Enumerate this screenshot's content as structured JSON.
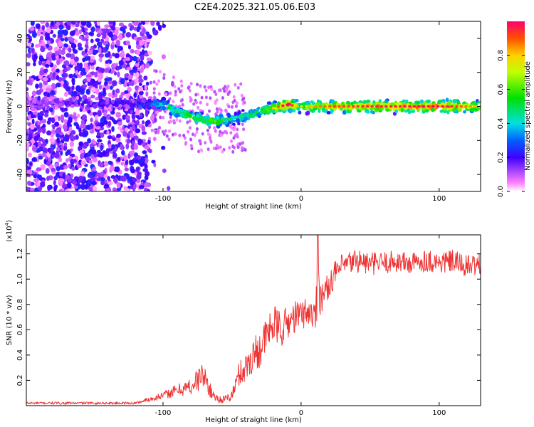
{
  "title": "C2E4.2025.321.05.06.E03",
  "chart_data": [
    {
      "type": "heatmap",
      "title": "C2E4.2025.321.05.06.E03",
      "xlabel": "Height of straight line (km)",
      "ylabel": "Frequency (Hz)",
      "xlim": [
        -199,
        130
      ],
      "ylim": [
        -50,
        50
      ],
      "xticks": [
        -100,
        0,
        100
      ],
      "yticks": [
        -40,
        -20,
        0,
        20,
        40
      ],
      "colorbar": {
        "label": "Normalized spectral amplitude",
        "range": [
          0,
          1
        ],
        "ticks": [
          0.0,
          0.2,
          0.4,
          0.6,
          0.8
        ]
      },
      "ridge_frequency_profile": {
        "x": [
          -199,
          -150,
          -110,
          -100,
          -90,
          -80,
          -70,
          -60,
          -50,
          -40,
          -30,
          -20,
          -10,
          0,
          10,
          20,
          50,
          100,
          130
        ],
        "frequency": [
          2,
          2,
          1,
          1,
          -3,
          -6,
          -8,
          -9,
          -7,
          -6,
          -3,
          -1,
          1,
          0,
          0,
          0,
          0,
          0,
          0
        ],
        "peak_amplitude": [
          0.15,
          0.18,
          0.25,
          0.45,
          0.5,
          0.6,
          0.55,
          0.6,
          0.45,
          0.5,
          0.55,
          0.7,
          0.95,
          0.6,
          0.75,
          0.8,
          0.85,
          0.9,
          0.7
        ]
      }
    },
    {
      "type": "line",
      "xlabel": "Height of straight line (km)",
      "ylabel": "SNR (10 * v/v)",
      "y_scale_label": "(x10",
      "y_scale_exponent": "4",
      "y_scale_suffix": ")",
      "xlim": [
        -199,
        130
      ],
      "ylim": [
        0,
        1.35
      ],
      "xticks": [
        -100,
        0,
        100
      ],
      "yticks": [
        0.2,
        0.4,
        0.6,
        0.8,
        1.0,
        1.2
      ],
      "color": "#ee3333",
      "series": [
        {
          "name": "SNR",
          "x": [
            -199,
            -160,
            -120,
            -110,
            -100,
            -90,
            -80,
            -75,
            -72,
            -68,
            -65,
            -60,
            -55,
            -50,
            -45,
            -40,
            -35,
            -30,
            -25,
            -20,
            -15,
            -10,
            -5,
            0,
            5,
            10,
            12,
            15,
            20,
            25,
            30,
            40,
            50,
            60,
            70,
            80,
            90,
            100,
            110,
            120,
            130
          ],
          "y": [
            0.02,
            0.02,
            0.02,
            0.05,
            0.08,
            0.12,
            0.15,
            0.2,
            0.25,
            0.18,
            0.1,
            0.05,
            0.05,
            0.08,
            0.25,
            0.3,
            0.4,
            0.45,
            0.55,
            0.65,
            0.6,
            0.65,
            0.7,
            0.72,
            0.75,
            0.7,
            1.0,
            0.85,
            0.95,
            1.05,
            1.1,
            1.15,
            1.12,
            1.13,
            1.14,
            1.12,
            1.15,
            1.13,
            1.14,
            1.1,
            1.12
          ],
          "noise_amplitude": [
            0.01,
            0.01,
            0.01,
            0.02,
            0.03,
            0.05,
            0.07,
            0.1,
            0.1,
            0.08,
            0.05,
            0.03,
            0.03,
            0.05,
            0.1,
            0.12,
            0.15,
            0.15,
            0.15,
            0.15,
            0.15,
            0.14,
            0.13,
            0.12,
            0.12,
            0.12,
            0.3,
            0.12,
            0.1,
            0.1,
            0.1,
            0.1,
            0.09,
            0.09,
            0.09,
            0.09,
            0.09,
            0.09,
            0.09,
            0.09,
            0.09
          ]
        }
      ]
    }
  ]
}
